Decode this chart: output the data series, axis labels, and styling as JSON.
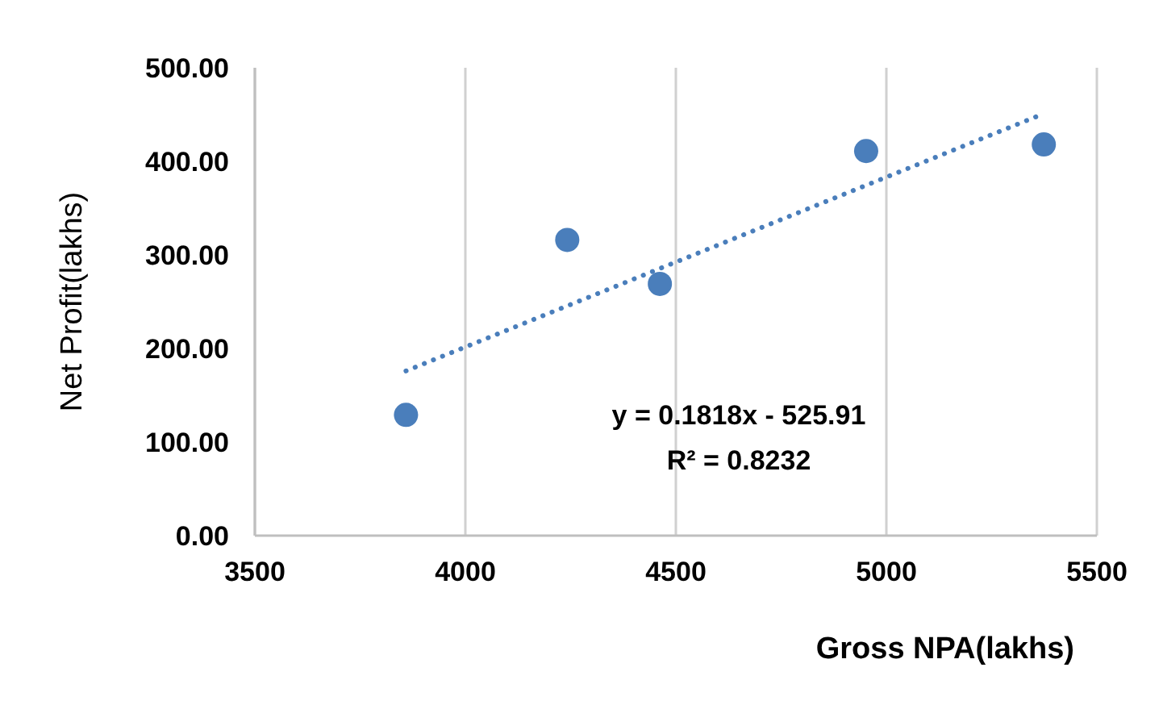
{
  "chart_data": {
    "type": "scatter",
    "xlabel": "Gross NPA(lakhs)",
    "ylabel": "Net Profit(lakhs)",
    "xlim": [
      3500,
      5500
    ],
    "xticks": [
      3500,
      4000,
      4500,
      5000,
      5500
    ],
    "ylim": [
      0,
      500
    ],
    "yticks": [
      {
        "value": 0,
        "label": "0.00"
      },
      {
        "value": 100,
        "label": "100.00"
      },
      {
        "value": 200,
        "label": "200.00"
      },
      {
        "value": 300,
        "label": "300.00"
      },
      {
        "value": 400,
        "label": "400.00"
      },
      {
        "value": 500,
        "label": "500.00"
      }
    ],
    "grid": "x",
    "legend": false,
    "series": [
      {
        "type": "scatter",
        "color": "#4a7ebb",
        "marker": "circle",
        "x": [
          3859,
          4242,
          4462,
          4952,
          5374
        ],
        "values": [
          129,
          316,
          269,
          411,
          418
        ]
      },
      {
        "type": "line",
        "color": "#4a7ebb",
        "marker": "none",
        "line_style": "dotted",
        "x": [
          3859,
          5374
        ],
        "values": [
          176,
          451
        ]
      }
    ],
    "annotations": [
      "y = 0.1818x - 525.91",
      "R² = 0.8232"
    ]
  }
}
